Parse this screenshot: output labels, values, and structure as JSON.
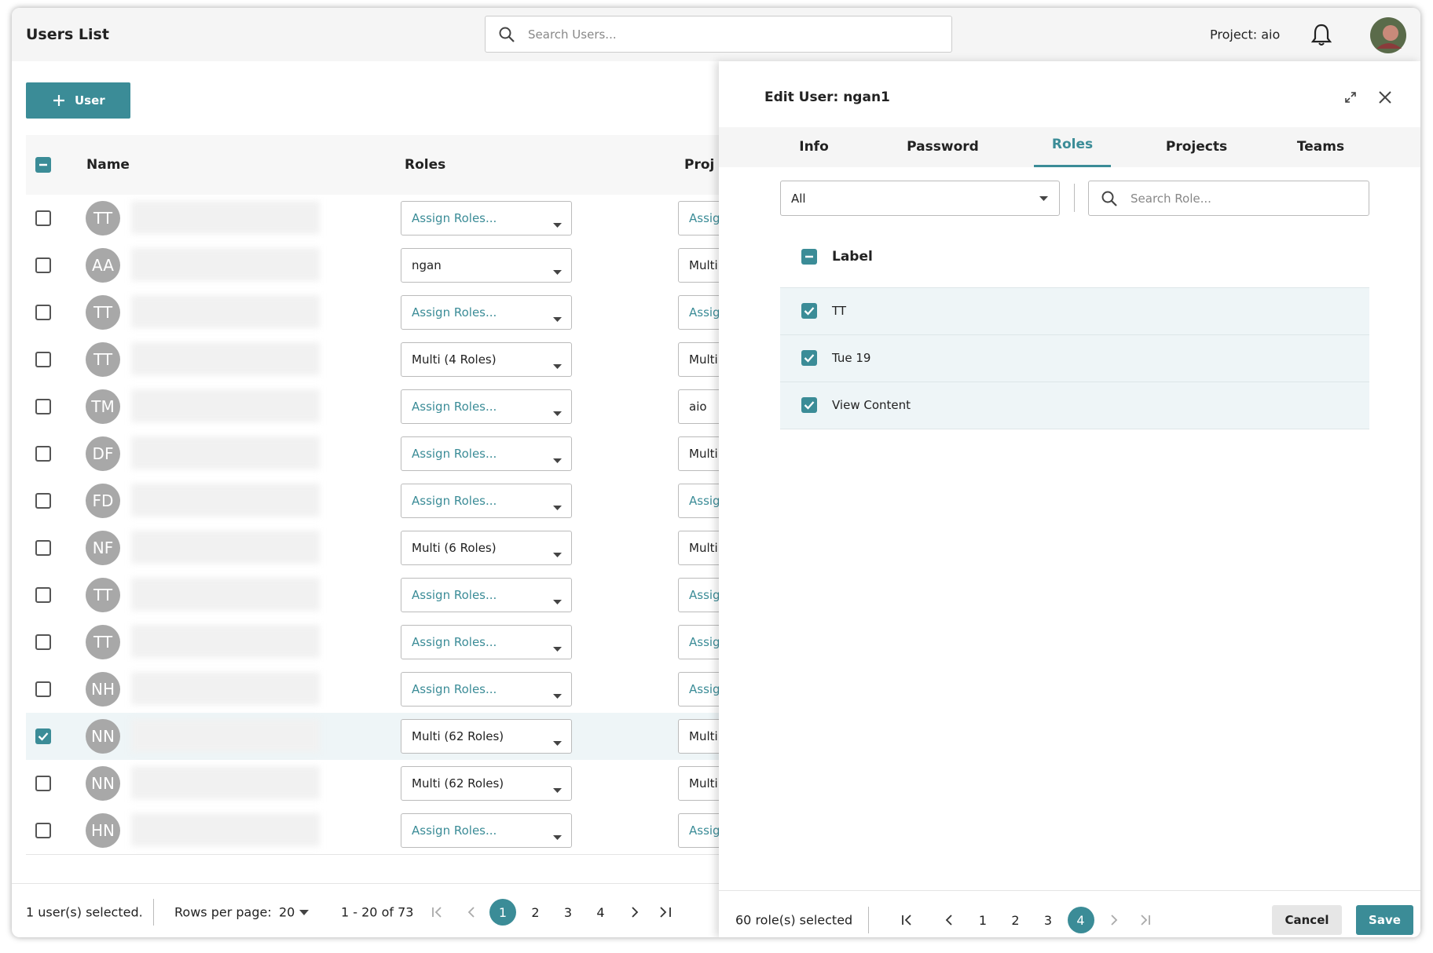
{
  "header": {
    "title": "Users List",
    "search_placeholder": "Search Users...",
    "project": "Project: aio"
  },
  "add_button": "User",
  "table": {
    "columns": [
      "Name",
      "Roles",
      "Proj"
    ],
    "rows": [
      {
        "initials": "TT",
        "roles": "Assign Roles...",
        "roles_set": false,
        "projects": "Assig",
        "projects_set": false,
        "selected": false
      },
      {
        "initials": "AA",
        "roles": "ngan",
        "roles_set": true,
        "projects": "Multi",
        "projects_set": true,
        "selected": false
      },
      {
        "initials": "TT",
        "roles": "Assign Roles...",
        "roles_set": false,
        "projects": "Assig",
        "projects_set": false,
        "selected": false
      },
      {
        "initials": "TT",
        "roles": "Multi (4 Roles)",
        "roles_set": true,
        "projects": "Multi",
        "projects_set": true,
        "selected": false
      },
      {
        "initials": "TM",
        "roles": "Assign Roles...",
        "roles_set": false,
        "projects": "aio",
        "projects_set": true,
        "selected": false
      },
      {
        "initials": "DF",
        "roles": "Assign Roles...",
        "roles_set": false,
        "projects": "Multi",
        "projects_set": true,
        "selected": false
      },
      {
        "initials": "FD",
        "roles": "Assign Roles...",
        "roles_set": false,
        "projects": "Assig",
        "projects_set": false,
        "selected": false
      },
      {
        "initials": "NF",
        "roles": "Multi (6 Roles)",
        "roles_set": true,
        "projects": "Multi",
        "projects_set": true,
        "selected": false
      },
      {
        "initials": "TT",
        "roles": "Assign Roles...",
        "roles_set": false,
        "projects": "Assig",
        "projects_set": false,
        "selected": false
      },
      {
        "initials": "TT",
        "roles": "Assign Roles...",
        "roles_set": false,
        "projects": "Assig",
        "projects_set": false,
        "selected": false
      },
      {
        "initials": "NH",
        "roles": "Assign Roles...",
        "roles_set": false,
        "projects": "Assig",
        "projects_set": false,
        "selected": false
      },
      {
        "initials": "NN",
        "roles": "Multi (62 Roles)",
        "roles_set": true,
        "projects": "Multi",
        "projects_set": true,
        "selected": true
      },
      {
        "initials": "NN",
        "roles": "Multi (62 Roles)",
        "roles_set": true,
        "projects": "Multi",
        "projects_set": true,
        "selected": false
      },
      {
        "initials": "HN",
        "roles": "Assign Roles...",
        "roles_set": false,
        "projects": "Assig",
        "projects_set": false,
        "selected": false
      }
    ]
  },
  "footer": {
    "selection": "1 user(s) selected.",
    "rows_per_page_label": "Rows per page:",
    "rows_per_page": "20",
    "range": "1 - 20 of 73",
    "pages": [
      {
        "label": "1",
        "current": true
      },
      {
        "label": "2",
        "current": false
      },
      {
        "label": "3",
        "current": false
      },
      {
        "label": "4",
        "current": false
      }
    ]
  },
  "panel": {
    "title": "Edit User: ngan1",
    "tabs": [
      {
        "label": "Info",
        "active": false
      },
      {
        "label": "Password",
        "active": false
      },
      {
        "label": "Roles",
        "active": true
      },
      {
        "label": "Projects",
        "active": false
      },
      {
        "label": "Teams",
        "active": false
      }
    ],
    "filter": "All",
    "search_placeholder": "Search Role...",
    "column": "Label",
    "rows": [
      {
        "label": "TT",
        "checked": true
      },
      {
        "label": "Tue 19",
        "checked": true
      },
      {
        "label": "View Content",
        "checked": true
      }
    ],
    "selection": "60 role(s) selected",
    "pages": [
      {
        "label": "1",
        "current": false
      },
      {
        "label": "2",
        "current": false
      },
      {
        "label": "3",
        "current": false
      },
      {
        "label": "4",
        "current": true
      }
    ],
    "cancel": "Cancel",
    "save": "Save"
  }
}
